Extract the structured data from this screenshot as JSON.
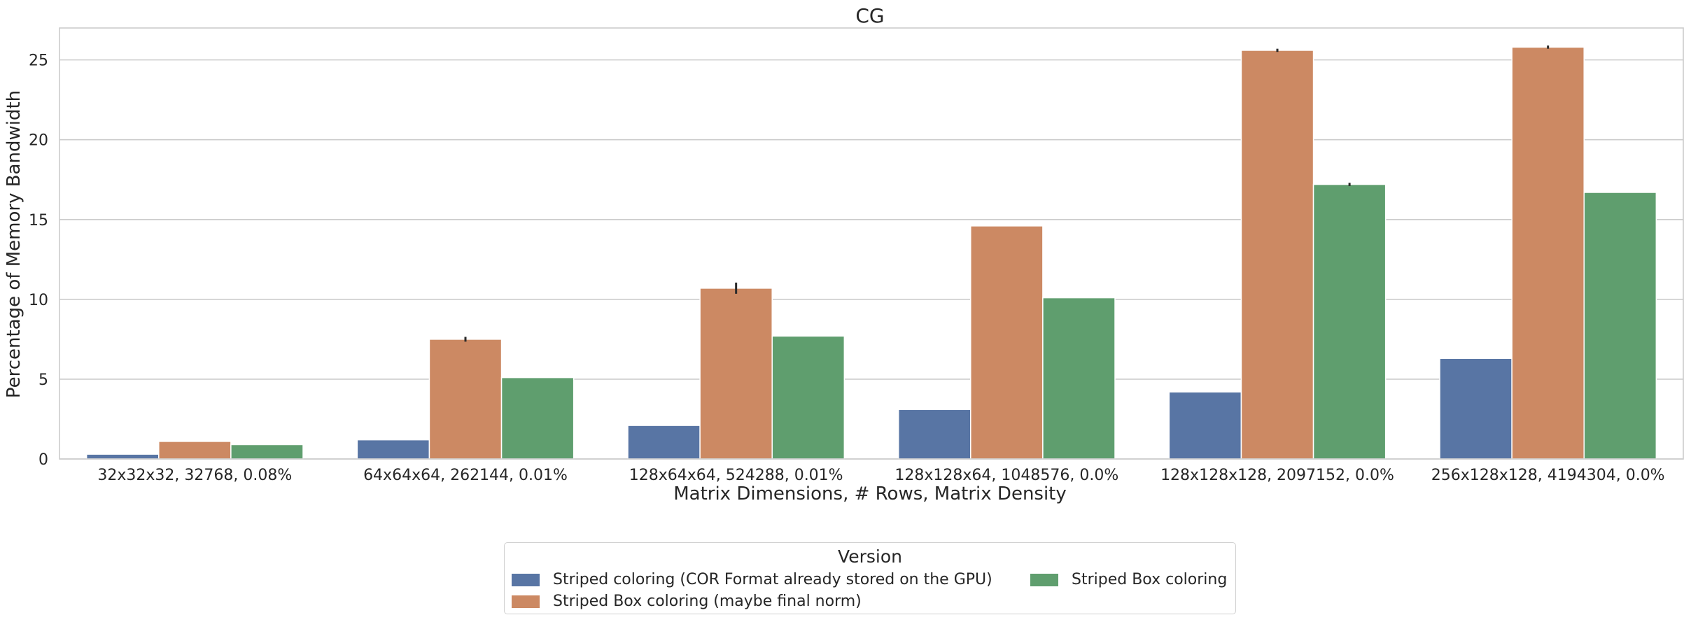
{
  "chart_data": {
    "type": "bar",
    "title": "CG",
    "xlabel": "Matrix Dimensions, # Rows, Matrix Density",
    "ylabel": "Percentage of Memory Bandwidth",
    "ylim": [
      0,
      27
    ],
    "yticks": [
      0,
      5,
      10,
      15,
      20,
      25
    ],
    "grid": true,
    "categories": [
      "32x32x32, 32768, 0.08%",
      "64x64x64, 262144, 0.01%",
      "128x64x64, 524288, 0.01%",
      "128x128x64, 1048576, 0.0%",
      "128x128x128, 2097152, 0.0%",
      "256x128x128, 4194304, 0.0%"
    ],
    "series": [
      {
        "name": "Striped coloring (COR Format already stored on the GPU)",
        "color": "#5875a4",
        "values": [
          0.3,
          1.2,
          2.1,
          3.1,
          4.2,
          6.3
        ],
        "errors": [
          0,
          0,
          0,
          0,
          0,
          0
        ]
      },
      {
        "name": "Striped Box coloring (maybe final norm)",
        "color": "#cc8963",
        "values": [
          1.1,
          7.5,
          10.7,
          14.6,
          25.6,
          25.8
        ],
        "errors": [
          0,
          0.15,
          0.35,
          0,
          0.1,
          0.1
        ]
      },
      {
        "name": "Striped Box coloring",
        "color": "#5f9e6e",
        "values": [
          0.9,
          5.1,
          7.7,
          10.1,
          17.2,
          16.7
        ],
        "errors": [
          0,
          0,
          0,
          0,
          0.1,
          0
        ]
      }
    ],
    "legend": {
      "title": "Version",
      "placement": "bottom-center"
    }
  }
}
